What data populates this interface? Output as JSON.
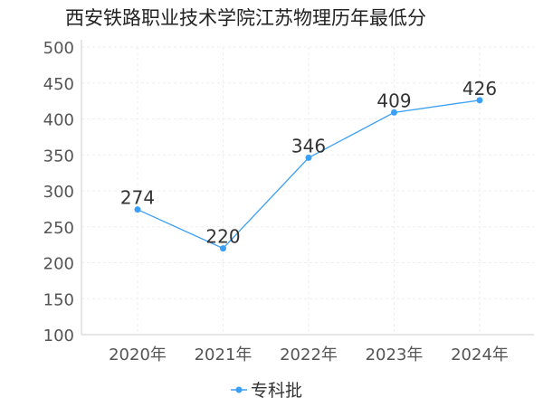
{
  "chart_data": {
    "type": "line",
    "title": "西安铁路职业技术学院江苏物理历年最低分",
    "categories": [
      "2020年",
      "2021年",
      "2022年",
      "2023年",
      "2024年"
    ],
    "series": [
      {
        "name": "专科批",
        "values": [
          274,
          220,
          346,
          409,
          426
        ]
      }
    ],
    "ylim": [
      100,
      500
    ],
    "yticks": [
      100,
      150,
      200,
      250,
      300,
      350,
      400,
      450,
      500
    ],
    "grid": true,
    "legend": "bottom-center",
    "colors": {
      "line": "#3a9ff5",
      "grid": "#eeeeee",
      "axis": "#cccccc"
    }
  }
}
